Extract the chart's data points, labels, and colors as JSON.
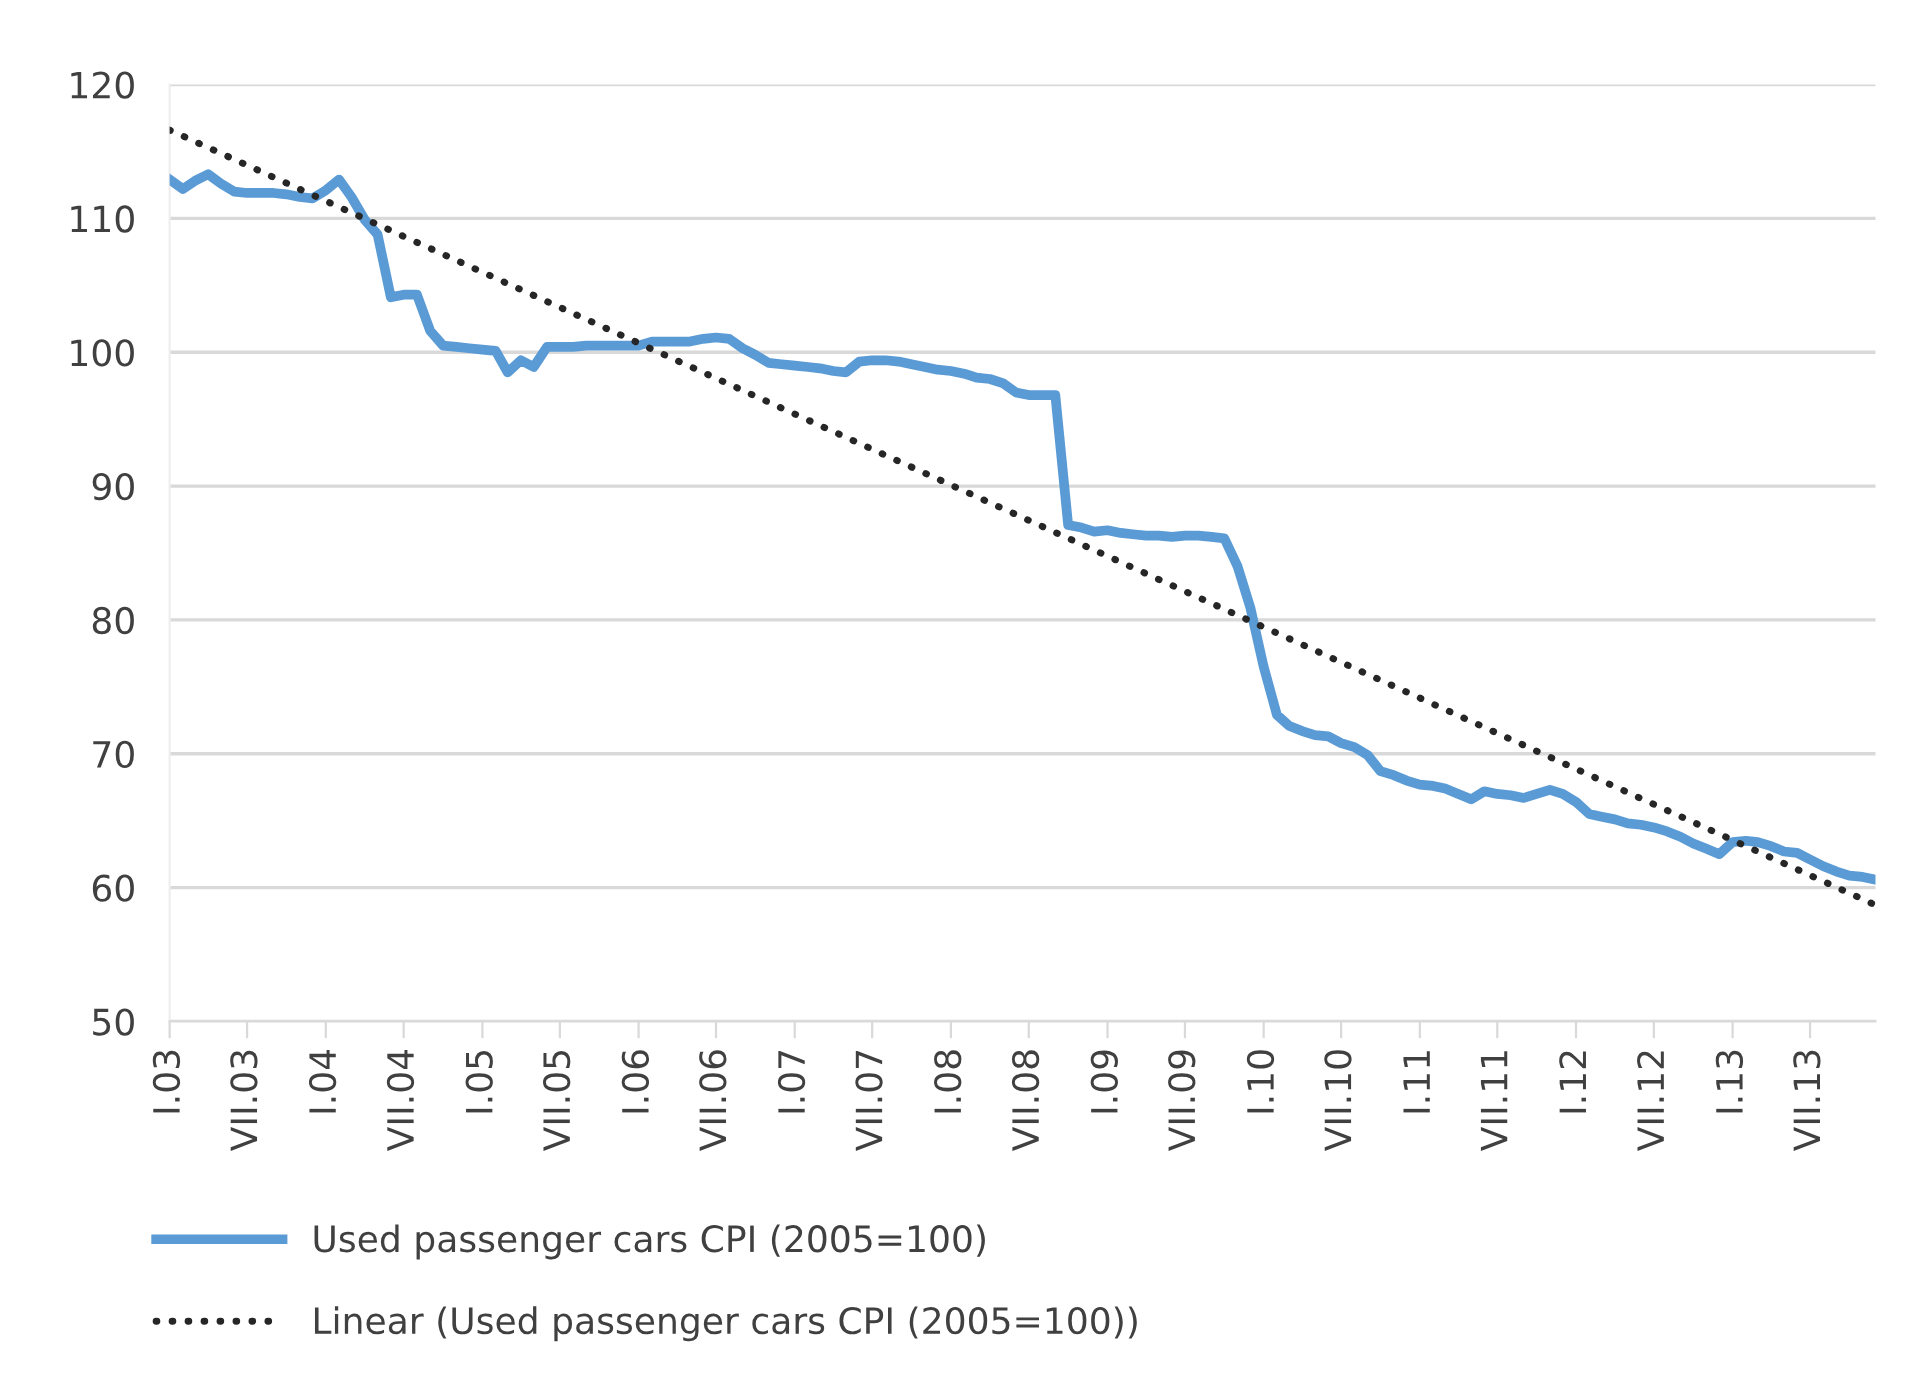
{
  "chart_data": {
    "type": "line",
    "x": [
      "2003-01",
      "2003-02",
      "2003-03",
      "2003-04",
      "2003-05",
      "2003-06",
      "2003-07",
      "2003-08",
      "2003-09",
      "2003-10",
      "2003-11",
      "2003-12",
      "2004-01",
      "2004-02",
      "2004-03",
      "2004-04",
      "2004-05",
      "2004-06",
      "2004-07",
      "2004-08",
      "2004-09",
      "2004-10",
      "2004-11",
      "2004-12",
      "2005-01",
      "2005-02",
      "2005-03",
      "2005-04",
      "2005-05",
      "2005-06",
      "2005-07",
      "2005-08",
      "2005-09",
      "2005-10",
      "2005-11",
      "2005-12",
      "2006-01",
      "2006-02",
      "2006-03",
      "2006-04",
      "2006-05",
      "2006-06",
      "2006-07",
      "2006-08",
      "2006-09",
      "2006-10",
      "2006-11",
      "2006-12",
      "2007-01",
      "2007-02",
      "2007-03",
      "2007-04",
      "2007-05",
      "2007-06",
      "2007-07",
      "2007-08",
      "2007-09",
      "2007-10",
      "2007-11",
      "2007-12",
      "2008-01",
      "2008-02",
      "2008-03",
      "2008-04",
      "2008-05",
      "2008-06",
      "2008-07",
      "2008-08",
      "2008-09",
      "2008-10",
      "2008-11",
      "2008-12",
      "2009-01",
      "2009-02",
      "2009-03",
      "2009-04",
      "2009-05",
      "2009-06",
      "2009-07",
      "2009-08",
      "2009-09",
      "2009-10",
      "2009-11",
      "2009-12",
      "2010-01",
      "2010-02",
      "2010-03",
      "2010-04",
      "2010-05",
      "2010-06",
      "2010-07",
      "2010-08",
      "2010-09",
      "2010-10",
      "2010-11",
      "2010-12",
      "2011-01",
      "2011-02",
      "2011-03",
      "2011-04",
      "2011-05",
      "2011-06",
      "2011-07",
      "2011-08",
      "2011-09",
      "2011-10",
      "2011-11",
      "2011-12",
      "2012-01",
      "2012-02",
      "2012-03",
      "2012-04",
      "2012-05",
      "2012-06",
      "2012-07",
      "2012-08",
      "2012-09",
      "2012-10",
      "2012-11",
      "2012-12",
      "2013-01",
      "2013-02",
      "2013-03",
      "2013-04",
      "2013-05",
      "2013-06",
      "2013-07",
      "2013-08",
      "2013-09",
      "2013-10",
      "2013-11",
      "2013-12"
    ],
    "series": [
      {
        "name": "Used passenger cars CPI (2005=100)",
        "color": "#5b9bd5",
        "line_style": "solid",
        "values": [
          112.9,
          112.2,
          112.8,
          113.3,
          112.6,
          112.0,
          111.9,
          111.9,
          111.9,
          111.8,
          111.6,
          111.5,
          112.1,
          112.9,
          111.6,
          109.9,
          108.8,
          104.1,
          104.3,
          104.3,
          101.6,
          100.5,
          100.4,
          100.3,
          100.2,
          100.1,
          98.5,
          99.4,
          98.9,
          100.4,
          100.4,
          100.4,
          100.5,
          100.5,
          100.5,
          100.5,
          100.5,
          100.8,
          100.8,
          100.8,
          100.8,
          101.0,
          101.1,
          101.0,
          100.3,
          99.8,
          99.2,
          99.1,
          99.0,
          98.9,
          98.8,
          98.6,
          98.5,
          99.3,
          99.4,
          99.4,
          99.3,
          99.1,
          98.9,
          98.7,
          98.6,
          98.4,
          98.1,
          98.0,
          97.7,
          97.0,
          96.8,
          96.8,
          96.8,
          87.1,
          86.9,
          86.6,
          86.7,
          86.5,
          86.4,
          86.3,
          86.3,
          86.2,
          86.3,
          86.3,
          86.2,
          86.1,
          84.0,
          80.9,
          76.5,
          72.9,
          72.1,
          71.7,
          71.4,
          71.3,
          70.8,
          70.5,
          69.9,
          68.7,
          68.4,
          68.0,
          67.7,
          67.6,
          67.4,
          67.0,
          66.6,
          67.2,
          67.0,
          66.9,
          66.7,
          67.0,
          67.3,
          67.0,
          66.4,
          65.5,
          65.3,
          65.1,
          64.8,
          64.7,
          64.5,
          64.2,
          63.8,
          63.3,
          62.9,
          62.5,
          63.4,
          63.5,
          63.4,
          63.1,
          62.7,
          62.6,
          62.1,
          61.6,
          61.2,
          60.9,
          60.8,
          60.6
        ]
      },
      {
        "name": "Linear (Used passenger cars CPI (2005=100))",
        "color": "#262626",
        "line_style": "dotted",
        "x": [
          "2003-01",
          "2013-12"
        ],
        "values": [
          116.6,
          58.7
        ]
      }
    ],
    "xlim": [
      "2003-01",
      "2013-12"
    ],
    "xticks": [
      {
        "value": "2003-01",
        "label": "I.03"
      },
      {
        "value": "2003-07",
        "label": "VII.03"
      },
      {
        "value": "2004-01",
        "label": "I.04"
      },
      {
        "value": "2004-07",
        "label": "VII.04"
      },
      {
        "value": "2005-01",
        "label": "I.05"
      },
      {
        "value": "2005-07",
        "label": "VII.05"
      },
      {
        "value": "2006-01",
        "label": "I.06"
      },
      {
        "value": "2006-07",
        "label": "VII.06"
      },
      {
        "value": "2007-01",
        "label": "I.07"
      },
      {
        "value": "2007-07",
        "label": "VII.07"
      },
      {
        "value": "2008-01",
        "label": "I.08"
      },
      {
        "value": "2008-07",
        "label": "VII.08"
      },
      {
        "value": "2009-01",
        "label": "I.09"
      },
      {
        "value": "2009-07",
        "label": "VII.09"
      },
      {
        "value": "2010-01",
        "label": "I.10"
      },
      {
        "value": "2010-07",
        "label": "VII.10"
      },
      {
        "value": "2011-01",
        "label": "I.11"
      },
      {
        "value": "2011-07",
        "label": "VII.11"
      },
      {
        "value": "2012-01",
        "label": "I.12"
      },
      {
        "value": "2012-07",
        "label": "VII.12"
      },
      {
        "value": "2013-01",
        "label": "I.13"
      },
      {
        "value": "2013-07",
        "label": "VII.13"
      }
    ],
    "ylim": [
      50,
      120
    ],
    "yticks": [
      50,
      60,
      70,
      80,
      90,
      100,
      110,
      120
    ],
    "grid": "y",
    "legend": "bottom",
    "marker": "none"
  }
}
